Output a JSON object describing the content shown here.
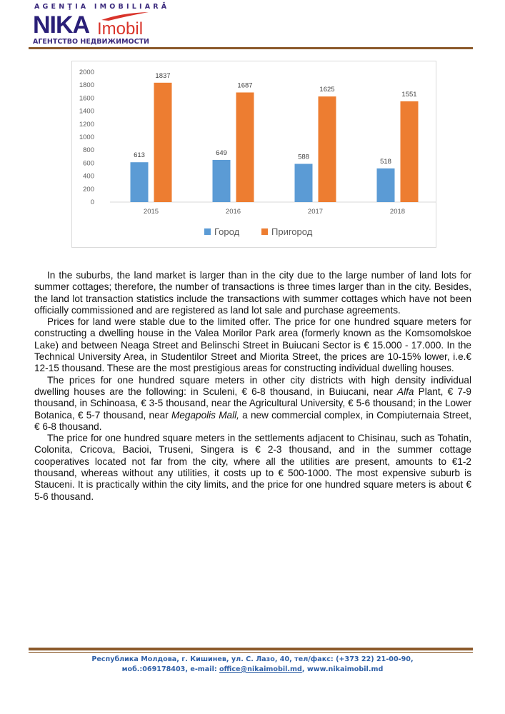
{
  "header": {
    "logo_top": "AGENŢIA IMOBILIARĂ",
    "logo_nika": "NIKA",
    "logo_imobil": "Imobil",
    "logo_bottom": "АГЕНТСТВО НЕДВИЖИМОСТИ"
  },
  "chart_data": {
    "type": "bar",
    "categories": [
      "2015",
      "2016",
      "2017",
      "2018"
    ],
    "series": [
      {
        "name": "Город",
        "values": [
          613,
          649,
          588,
          518
        ],
        "color": "#5b9bd5"
      },
      {
        "name": "Пригород",
        "values": [
          1837,
          1687,
          1625,
          1551
        ],
        "color": "#ed7d31"
      }
    ],
    "ylim": [
      0,
      2000
    ],
    "yticks": [
      0,
      200,
      400,
      600,
      800,
      1000,
      1200,
      1400,
      1600,
      1800,
      2000
    ],
    "grid": false,
    "legend": "bottom",
    "data_labels": true
  },
  "body": {
    "paragraphs": [
      "In the suburbs, the land market is larger than in the city due to the large number of land lots for summer cottages; therefore, the number of transactions is three times larger than in the city. Besides, the land lot transaction statistics include the transactions with summer cottages which have not been officially commissioned and are registered as land lot sale and purchase agreements.",
      "Prices for land were stable due to the limited offer. The price for one hundred square meters for constructing a dwelling house in the Valea Morilor Park area (formerly known as the Komsomolskoe Lake) and between Neaga Street and Belinschi Street in Buiucani Sector is € 15.000 - 17.000. In the Technical University Area, in Studentilor Street and Miorita Street, the prices are 10-15% lower, i.e.€ 12-15 thousand. These are the most prestigious areas for constructing individual dwelling houses."
    ],
    "p3": {
      "a": "The prices for one hundred square meters in other city districts with high density individual dwelling houses are the following: in Sculeni, € 6-8 thousand, in Buiucani, near ",
      "b": "Alfa",
      "c": " Plant, € 7-9 thousand, in Schinoasa, € 3-5 thousand, near the Agricultural University, € 5-6 thousand; in the Lower Botanica, €  5-7 thousand, near ",
      "d": "Megapolis Mall,",
      "e": " a new commercial complex, in Compiuternaia Street, € 6-8 thousand."
    },
    "p4": "The price for one hundred square meters in the settlements adjacent to Chisinau, such as Tohatin, Colonita, Cricova, Bacioi, Truseni, Singera is € 2-3 thousand,  and in the summer cottage cooperatives located not far from the city, where all the utilities are present, amounts to €1-2 thousand, whereas without any utilities, it costs up to € 500-1000. The most expensive suburb is Stauceni. It is practically within the city limits, and the price for one hundred square meters is about € 5-6 thousand."
  },
  "footer": {
    "line1": "Республика Молдова, г. Кишинев, ул. С. Лазо, 40, тел/факс: (+373 22) 21-00-90,",
    "line2_prefix": "моб.:069178403, e-mail: ",
    "email": "office@nikaimobil.md",
    "sep": ", ",
    "website": "www.nikaimobil.md"
  }
}
